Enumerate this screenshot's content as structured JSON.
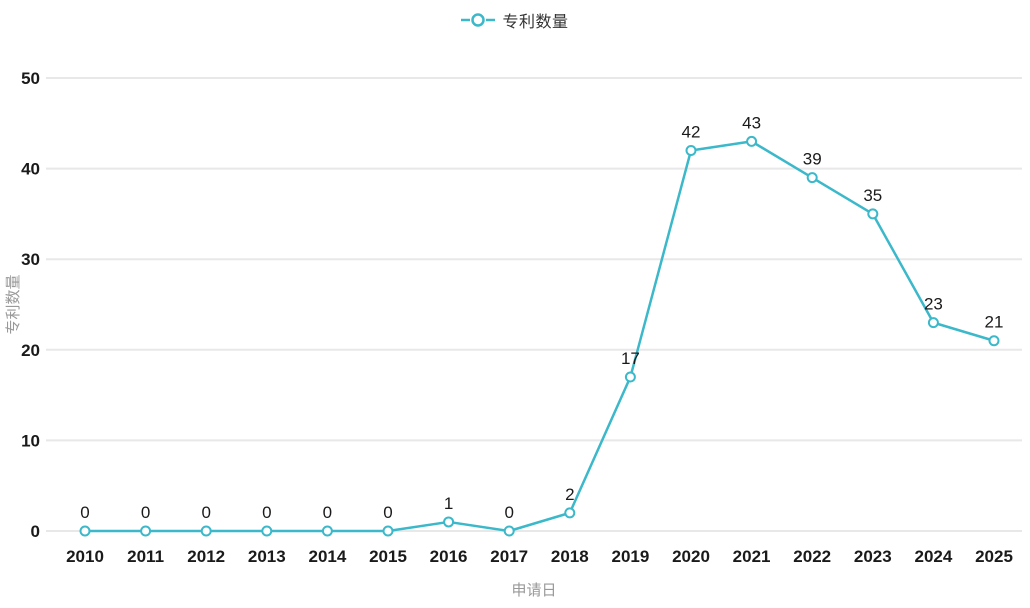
{
  "chart_data": {
    "type": "line",
    "title": "",
    "legend": "专利数量",
    "xlabel": "申请日",
    "ylabel": "专利数量",
    "categories": [
      "2010",
      "2011",
      "2012",
      "2013",
      "2014",
      "2015",
      "2016",
      "2017",
      "2018",
      "2019",
      "2020",
      "2021",
      "2022",
      "2023",
      "2024",
      "2025"
    ],
    "values": [
      0,
      0,
      0,
      0,
      0,
      0,
      1,
      0,
      2,
      17,
      42,
      43,
      39,
      35,
      23,
      21
    ],
    "ylim": [
      0,
      50
    ],
    "yticks": [
      0,
      10,
      20,
      30,
      40,
      50
    ],
    "grid": true,
    "legend_position": "top-center",
    "marker": "hollow-circle",
    "colors": {
      "line": "#3bb8c9",
      "marker_fill": "#ffffff",
      "grid": "#e8e8e8",
      "tick_label": "#1a1a1a",
      "value_label": "#1a1a1a",
      "axis_title": "#999999",
      "legend_text": "#333333",
      "background": "#ffffff"
    }
  }
}
